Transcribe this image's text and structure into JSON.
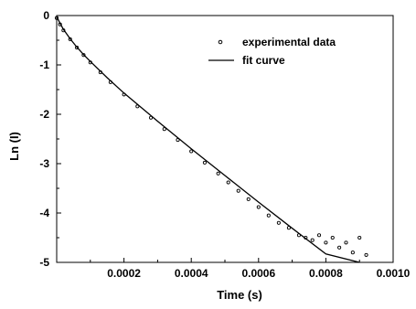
{
  "chart_data": {
    "type": "scatter",
    "title": "",
    "xlabel": "Time (s)",
    "ylabel": "Ln (I)",
    "xlim": [
      0,
      0.001
    ],
    "ylim": [
      -5,
      0
    ],
    "x_ticks": [
      {
        "value": 0.0002,
        "label": "0.0002"
      },
      {
        "value": 0.0004,
        "label": "0.0004"
      },
      {
        "value": 0.0006,
        "label": "0.0006"
      },
      {
        "value": 0.0008,
        "label": "0.0008"
      },
      {
        "value": 0.001,
        "label": "0.0010"
      }
    ],
    "y_ticks": [
      {
        "value": 0,
        "label": "0"
      },
      {
        "value": -1,
        "label": "-1"
      },
      {
        "value": -2,
        "label": "-2"
      },
      {
        "value": -3,
        "label": "-3"
      },
      {
        "value": -4,
        "label": "-4"
      },
      {
        "value": -5,
        "label": "-5"
      }
    ],
    "grid": false,
    "legend_position": "top-right",
    "series": [
      {
        "name": "experimental data",
        "kind": "scatter",
        "marker": "open-circle",
        "color": "#000000",
        "x": [
          0.0,
          1e-05,
          2e-05,
          4e-05,
          6e-05,
          8e-05,
          0.0001,
          0.00013,
          0.00016,
          0.0002,
          0.00024,
          0.00028,
          0.00032,
          0.00036,
          0.0004,
          0.00044,
          0.00048,
          0.00051,
          0.00054,
          0.00057,
          0.0006,
          0.00063,
          0.00066,
          0.00069,
          0.00072,
          0.00074,
          0.00076,
          0.00078,
          0.0008,
          0.00082,
          0.00084,
          0.00086,
          0.00088,
          0.0009,
          0.00092
        ],
        "y": [
          -0.05,
          -0.18,
          -0.3,
          -0.48,
          -0.65,
          -0.8,
          -0.95,
          -1.15,
          -1.35,
          -1.6,
          -1.84,
          -2.07,
          -2.3,
          -2.52,
          -2.75,
          -2.98,
          -3.2,
          -3.38,
          -3.55,
          -3.72,
          -3.88,
          -4.05,
          -4.2,
          -4.3,
          -4.45,
          -4.5,
          -4.55,
          -4.45,
          -4.6,
          -4.5,
          -4.7,
          -4.6,
          -4.8,
          -4.5,
          -4.85
        ]
      },
      {
        "name": "fit curve",
        "kind": "line",
        "color": "#000000",
        "x": [
          0.0,
          1e-05,
          2e-05,
          4e-05,
          6e-05,
          8e-05,
          0.0001,
          0.00015,
          0.0002,
          0.0003,
          0.0004,
          0.0005,
          0.0006,
          0.0007,
          0.0008,
          0.0009
        ],
        "y": [
          -0.02,
          -0.16,
          -0.28,
          -0.47,
          -0.64,
          -0.79,
          -0.93,
          -1.26,
          -1.57,
          -2.14,
          -2.7,
          -3.24,
          -3.78,
          -4.31,
          -4.83,
          -5.0
        ]
      }
    ]
  }
}
